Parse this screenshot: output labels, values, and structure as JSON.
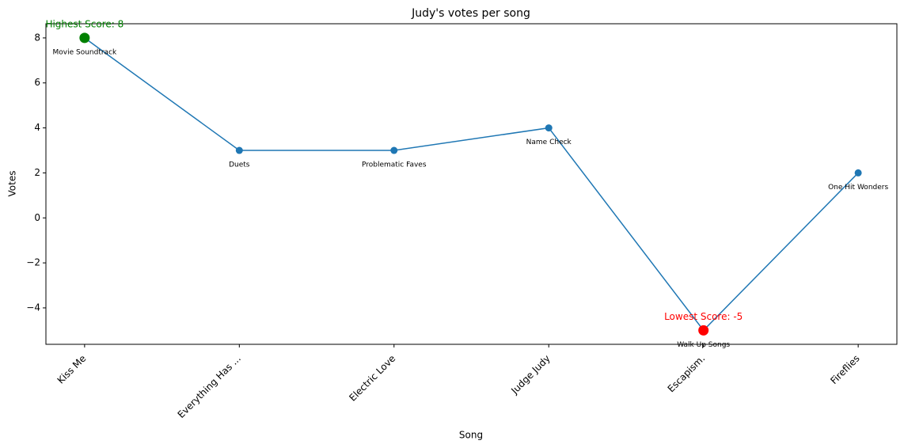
{
  "chart_data": {
    "type": "line",
    "title": "Judy's votes per song",
    "x_label": "Song",
    "y_label": "Votes",
    "categories": [
      "Kiss Me",
      "Everything Has ...",
      "Electric Love",
      "Judge Judy",
      "Escapism.",
      "Fireflies"
    ],
    "point_labels": [
      "Movie Soundtrack",
      "Duets",
      "Problematic Faves",
      "Name Check",
      "Walk Up Songs",
      "One Hit Wonders"
    ],
    "values": [
      8,
      3,
      3,
      4,
      -5,
      2
    ],
    "color": "#1f77b4",
    "max_annotation": {
      "text": "Highest Score: 8",
      "color": "green"
    },
    "min_annotation": {
      "text": "Lowest Score: -5",
      "color": "red"
    },
    "ylim": [
      -5.62,
      8.63
    ],
    "yticks": [
      {
        "value": -4,
        "label": "−4"
      },
      {
        "value": -2,
        "label": "−2"
      },
      0,
      2,
      4,
      6,
      8
    ],
    "grid": false
  }
}
